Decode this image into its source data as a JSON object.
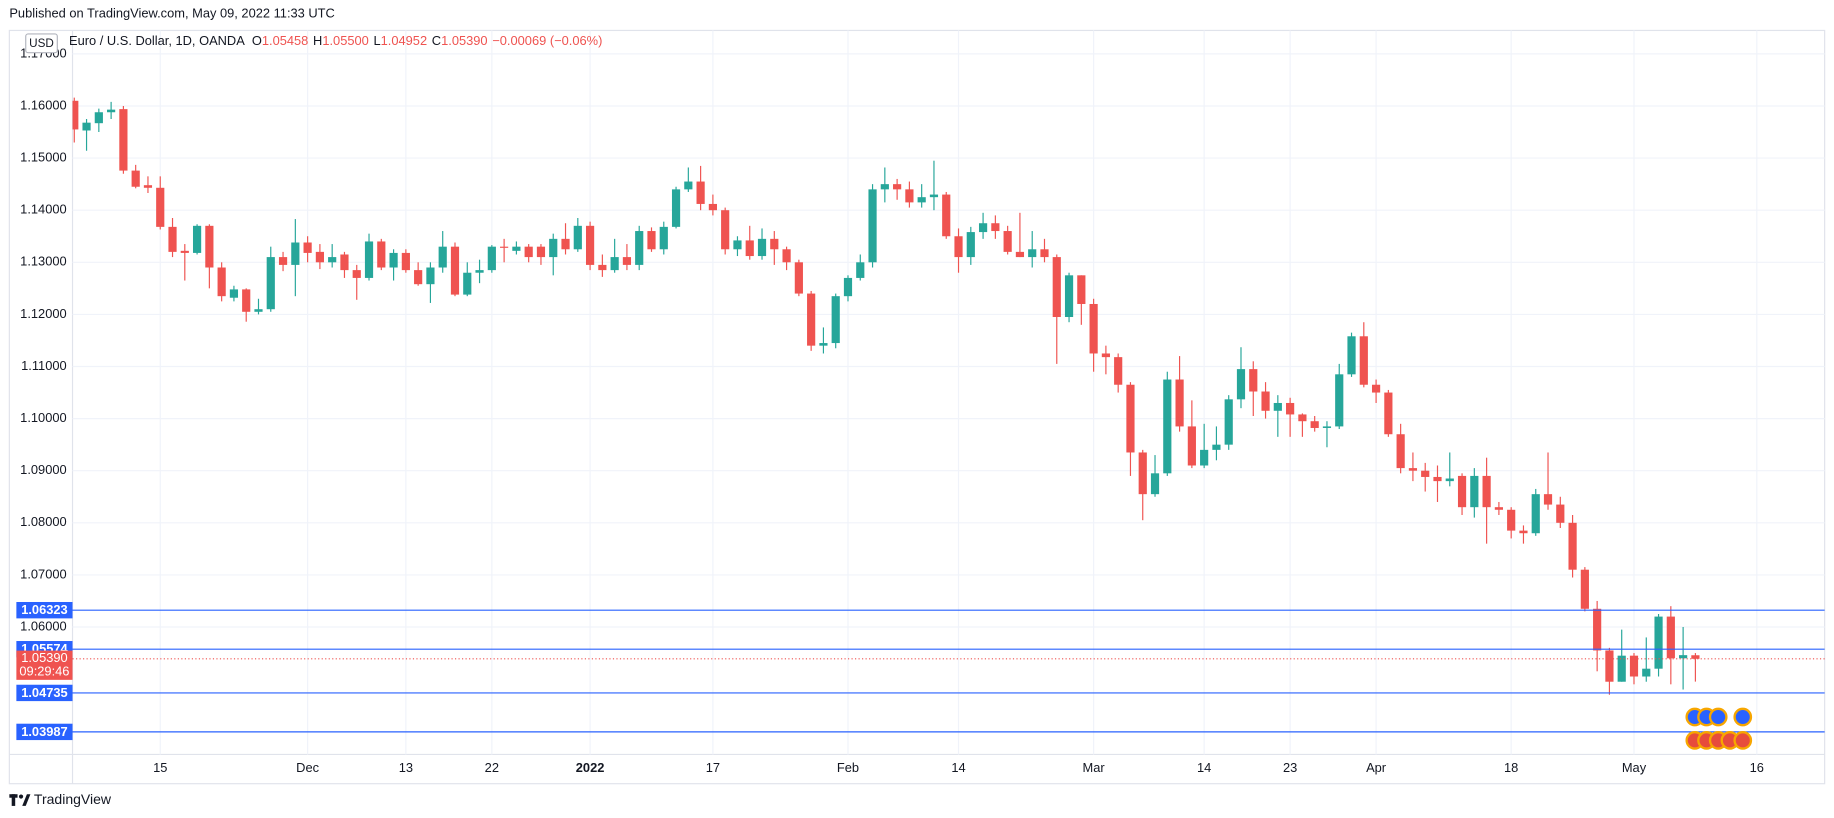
{
  "published": "Published on TradingView.com, May 09, 2022 11:33 UTC",
  "brand": "TradingView",
  "chart_data": {
    "type": "candlestick",
    "title": "Euro / U.S. Dollar, 1D, OANDA",
    "currency": "USD",
    "ohlc_prefixes": [
      "O",
      "H",
      "L",
      "C"
    ],
    "ohlc_value_labels": [
      "1.05458",
      "1.05500",
      "1.04952",
      "1.05390"
    ],
    "change": "−0.00069 (−0.06%)",
    "categories": [
      null,
      null,
      null,
      null,
      null,
      null,
      null,
      "15",
      null,
      null,
      null,
      null,
      null,
      null,
      null,
      null,
      null,
      null,
      null,
      "Dec",
      null,
      null,
      null,
      null,
      null,
      null,
      null,
      "13",
      null,
      null,
      null,
      null,
      null,
      null,
      "22",
      null,
      null,
      null,
      null,
      null,
      null,
      null,
      "2022",
      null,
      null,
      null,
      null,
      null,
      null,
      null,
      null,
      null,
      "17",
      null,
      null,
      null,
      null,
      null,
      null,
      null,
      null,
      null,
      null,
      "Feb",
      null,
      null,
      null,
      null,
      null,
      null,
      null,
      null,
      "14",
      null,
      null,
      null,
      null,
      null,
      null,
      null,
      null,
      null,
      null,
      "Mar",
      null,
      null,
      null,
      null,
      null,
      null,
      null,
      null,
      "14",
      null,
      null,
      null,
      null,
      null,
      null,
      "23",
      null,
      null,
      null,
      null,
      null,
      null,
      "Apr",
      null,
      null,
      null,
      null,
      null,
      null,
      null,
      null,
      null,
      null,
      "18",
      null,
      null,
      null,
      null,
      null,
      null,
      null,
      null,
      null,
      "May",
      null,
      null,
      null,
      null,
      null,
      null,
      null,
      null,
      null,
      "16"
    ],
    "open": [
      1.161,
      1.1553,
      1.1567,
      1.1588,
      1.1594,
      1.1476,
      1.1448,
      1.1443,
      1.1368,
      1.1322,
      1.1318,
      1.137,
      1.129,
      1.1232,
      1.1248,
      1.1205,
      1.121,
      1.131,
      1.1295,
      1.1338,
      1.132,
      1.13,
      1.1315,
      1.1285,
      1.127,
      1.134,
      1.129,
      1.1318,
      1.1285,
      1.1258,
      1.129,
      1.133,
      1.1238,
      1.128,
      1.1285,
      1.133,
      1.1322,
      1.133,
      1.133,
      1.131,
      1.1345,
      1.1325,
      1.137,
      1.1295,
      1.1285,
      1.131,
      1.1295,
      1.136,
      1.1325,
      1.1368,
      1.144,
      1.1455,
      1.1412,
      1.14,
      1.1325,
      1.1342,
      1.1312,
      1.1345,
      1.1325,
      1.13,
      1.124,
      1.114,
      1.1145,
      1.1235,
      1.127,
      1.13,
      1.144,
      1.145,
      1.144,
      1.1415,
      1.1425,
      1.143,
      1.135,
      1.131,
      1.1358,
      1.1375,
      1.136,
      1.132,
      1.131,
      1.1325,
      1.131,
      1.1195,
      1.1275,
      1.122,
      1.1125,
      1.1118,
      1.1065,
      1.0935,
      1.0855,
      1.0895,
      1.1075,
      1.0985,
      1.091,
      1.094,
      1.095,
      1.1037,
      1.1095,
      1.1052,
      1.1015,
      1.103,
      1.1008,
      1.0995,
      1.0982,
      1.0985,
      1.1085,
      1.1158,
      1.1065,
      1.105,
      1.097,
      1.0905,
      1.09,
      1.0888,
      1.088,
      1.089,
      1.083,
      1.089,
      1.083,
      1.0825,
      1.0785,
      1.078,
      1.0855,
      1.0835,
      1.08,
      1.071,
      1.0635,
      1.0555,
      1.0495,
      1.0545,
      1.0505,
      1.052,
      1.062,
      1.054,
      1.05458,
      null,
      null,
      null,
      null,
      null
    ],
    "high": [
      1.1616,
      1.1575,
      1.1595,
      1.1608,
      1.16,
      1.1487,
      1.1465,
      1.1465,
      1.1385,
      1.1335,
      1.1373,
      1.1373,
      1.13,
      1.1255,
      1.125,
      1.123,
      1.133,
      1.132,
      1.1383,
      1.135,
      1.1335,
      1.1335,
      1.132,
      1.1295,
      1.1355,
      1.1345,
      1.1325,
      1.1325,
      1.13,
      1.13,
      1.136,
      1.1338,
      1.13,
      1.1305,
      1.1333,
      1.1345,
      1.134,
      1.1335,
      1.1335,
      1.1355,
      1.1375,
      1.1385,
      1.1378,
      1.1315,
      1.1345,
      1.1335,
      1.137,
      1.1367,
      1.1378,
      1.1445,
      1.1482,
      1.1485,
      1.143,
      1.1405,
      1.135,
      1.137,
      1.1365,
      1.136,
      1.133,
      1.1305,
      1.1245,
      1.1175,
      1.124,
      1.1275,
      1.1315,
      1.145,
      1.1482,
      1.146,
      1.1455,
      1.145,
      1.1495,
      1.1435,
      1.1365,
      1.1368,
      1.1395,
      1.139,
      1.137,
      1.1395,
      1.136,
      1.1345,
      1.1315,
      1.128,
      1.1275,
      1.123,
      1.114,
      1.1125,
      1.107,
      1.094,
      1.093,
      1.109,
      1.112,
      1.1035,
      1.099,
      1.0985,
      1.1045,
      1.1137,
      1.111,
      1.107,
      1.1045,
      1.104,
      1.101,
      1.1005,
      1.0995,
      1.1105,
      1.1165,
      1.1185,
      1.1075,
      1.1055,
      1.099,
      1.0935,
      1.0915,
      1.091,
      1.0935,
      1.0895,
      1.0905,
      1.0925,
      1.084,
      1.083,
      1.0795,
      1.0865,
      1.0935,
      1.085,
      1.0815,
      1.0715,
      1.065,
      1.056,
      1.0595,
      1.055,
      1.058,
      1.0625,
      1.064,
      1.06,
      1.055,
      null,
      null,
      null,
      null,
      null
    ],
    "low": [
      1.153,
      1.1514,
      1.155,
      1.1575,
      1.147,
      1.1442,
      1.1433,
      1.1363,
      1.131,
      1.1265,
      1.1315,
      1.125,
      1.1225,
      1.1225,
      1.1186,
      1.12,
      1.1205,
      1.1283,
      1.1235,
      1.13,
      1.1287,
      1.129,
      1.127,
      1.1228,
      1.1265,
      1.1285,
      1.1265,
      1.128,
      1.1255,
      1.1222,
      1.128,
      1.1235,
      1.1235,
      1.126,
      1.128,
      1.13,
      1.1315,
      1.13,
      1.1295,
      1.1275,
      1.1315,
      1.132,
      1.1285,
      1.1272,
      1.128,
      1.1285,
      1.1285,
      1.132,
      1.1315,
      1.1365,
      1.1435,
      1.14,
      1.139,
      1.1315,
      1.1312,
      1.1305,
      1.1305,
      1.1295,
      1.1285,
      1.1235,
      1.113,
      1.1125,
      1.1135,
      1.1225,
      1.1265,
      1.129,
      1.1415,
      1.142,
      1.1405,
      1.1405,
      1.14,
      1.1345,
      1.128,
      1.1295,
      1.1345,
      1.1345,
      1.1315,
      1.131,
      1.129,
      1.13,
      1.1105,
      1.1185,
      1.118,
      1.109,
      1.1085,
      1.105,
      1.089,
      1.0805,
      1.085,
      1.089,
      1.0975,
      1.0905,
      1.0905,
      1.092,
      1.094,
      1.102,
      1.1005,
      1.1,
      1.0965,
      1.0965,
      1.0965,
      1.0975,
      1.0945,
      1.098,
      1.108,
      1.106,
      1.103,
      1.0965,
      1.0895,
      1.088,
      1.086,
      1.084,
      1.087,
      1.0815,
      1.081,
      1.076,
      1.0815,
      1.077,
      1.076,
      1.0775,
      1.0825,
      1.079,
      1.0695,
      1.063,
      1.0515,
      1.047,
      1.0495,
      1.049,
      1.0495,
      1.0505,
      1.049,
      1.048,
      1.04952,
      null,
      null,
      null,
      null,
      null
    ],
    "close": [
      1.1555,
      1.1568,
      1.1588,
      1.1593,
      1.1476,
      1.1445,
      1.1443,
      1.1368,
      1.132,
      1.1318,
      1.137,
      1.129,
      1.1235,
      1.1248,
      1.1205,
      1.121,
      1.131,
      1.1295,
      1.1338,
      1.1318,
      1.13,
      1.131,
      1.1285,
      1.127,
      1.134,
      1.129,
      1.1318,
      1.1285,
      1.1258,
      1.129,
      1.133,
      1.1238,
      1.128,
      1.1285,
      1.133,
      1.1328,
      1.133,
      1.131,
      1.131,
      1.1345,
      1.1325,
      1.137,
      1.1295,
      1.1285,
      1.131,
      1.1295,
      1.136,
      1.1325,
      1.1368,
      1.144,
      1.1455,
      1.1412,
      1.14,
      1.1325,
      1.1342,
      1.1312,
      1.1345,
      1.1325,
      1.13,
      1.124,
      1.114,
      1.1145,
      1.1235,
      1.127,
      1.13,
      1.144,
      1.145,
      1.144,
      1.1415,
      1.1425,
      1.143,
      1.135,
      1.131,
      1.1358,
      1.1375,
      1.136,
      1.132,
      1.131,
      1.1325,
      1.131,
      1.1195,
      1.1275,
      1.122,
      1.1125,
      1.1118,
      1.1065,
      1.0935,
      1.0855,
      1.0895,
      1.1075,
      1.0985,
      1.091,
      1.094,
      1.095,
      1.1037,
      1.1095,
      1.1052,
      1.1015,
      1.103,
      1.1008,
      1.0995,
      1.0982,
      1.0985,
      1.1085,
      1.1158,
      1.1065,
      1.105,
      1.097,
      1.0905,
      1.09,
      1.0888,
      1.088,
      1.0885,
      1.083,
      1.089,
      1.083,
      1.0825,
      1.0785,
      1.078,
      1.0855,
      1.0835,
      1.08,
      1.071,
      1.0635,
      1.0555,
      1.0495,
      1.0545,
      1.0505,
      1.052,
      1.062,
      1.054,
      1.0546,
      1.0539,
      null,
      null,
      null,
      null,
      null
    ],
    "up_color": "#26a69a",
    "down_color": "#ef5350",
    "ylim": [
      1.03554,
      1.1745
    ],
    "yticks": [
      {
        "value": 1.17,
        "label": "1.17000"
      },
      {
        "value": 1.16,
        "label": "1.16000"
      },
      {
        "value": 1.15,
        "label": "1.15000"
      },
      {
        "value": 1.14,
        "label": "1.14000"
      },
      {
        "value": 1.13,
        "label": "1.13000"
      },
      {
        "value": 1.12,
        "label": "1.12000"
      },
      {
        "value": 1.11,
        "label": "1.11000"
      },
      {
        "value": 1.1,
        "label": "1.10000"
      },
      {
        "value": 1.09,
        "label": "1.09000"
      },
      {
        "value": 1.08,
        "label": "1.08000"
      },
      {
        "value": 1.07,
        "label": "1.07000"
      },
      {
        "value": 1.06,
        "label": "1.06000"
      }
    ],
    "grid": true,
    "hlines": [
      1.06323,
      1.05574,
      1.04735,
      1.03987
    ],
    "hline_color": "#2962ff",
    "last_price": {
      "value": 1.0539,
      "label": "1.05390"
    },
    "countdown": "09:29:46"
  }
}
